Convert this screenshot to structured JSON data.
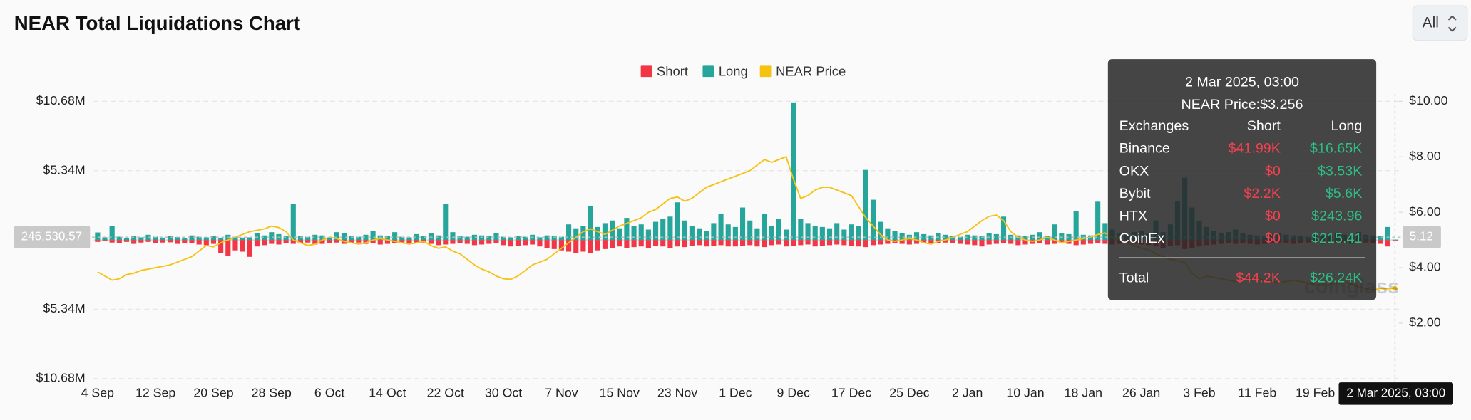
{
  "header": {
    "title": "NEAR Total Liquidations Chart",
    "range_select": "All"
  },
  "chart_data": {
    "type": "bar",
    "legend": "top",
    "grid": true,
    "categories": [
      "4 Sep",
      null,
      null,
      null,
      null,
      null,
      null,
      null,
      "12 Sep",
      null,
      null,
      null,
      null,
      null,
      null,
      null,
      "20 Sep",
      null,
      null,
      null,
      null,
      null,
      null,
      null,
      "28 Sep",
      null,
      null,
      null,
      null,
      null,
      null,
      null,
      "6 Oct",
      null,
      null,
      null,
      null,
      null,
      null,
      null,
      "14 Oct",
      null,
      null,
      null,
      null,
      null,
      null,
      null,
      "22 Oct",
      null,
      null,
      null,
      null,
      null,
      null,
      null,
      "30 Oct",
      null,
      null,
      null,
      null,
      null,
      null,
      null,
      "7 Nov",
      null,
      null,
      null,
      null,
      null,
      null,
      null,
      "15 Nov",
      null,
      null,
      null,
      null,
      null,
      null,
      null,
      "23 Nov",
      null,
      null,
      null,
      null,
      null,
      null,
      null,
      "1 Dec",
      null,
      null,
      null,
      null,
      null,
      null,
      null,
      "9 Dec",
      null,
      null,
      null,
      null,
      null,
      null,
      null,
      "17 Dec",
      null,
      null,
      null,
      null,
      null,
      null,
      null,
      "25 Dec",
      null,
      null,
      null,
      null,
      null,
      null,
      null,
      "2 Jan",
      null,
      null,
      null,
      null,
      null,
      null,
      null,
      "10 Jan",
      null,
      null,
      null,
      null,
      null,
      null,
      null,
      "18 Jan",
      null,
      null,
      null,
      null,
      null,
      null,
      null,
      "26 Jan",
      null,
      null,
      null,
      null,
      null,
      null,
      null,
      "3 Feb",
      null,
      null,
      null,
      null,
      null,
      null,
      null,
      "11 Feb",
      null,
      null,
      null,
      null,
      null,
      null,
      null,
      "19 Feb",
      null,
      null,
      null,
      null,
      null,
      null,
      null,
      null,
      null,
      null,
      null
    ],
    "ylim": [
      -10680000,
      10680000
    ],
    "yticks": [
      {
        "value": 10680000,
        "label": "$10.68M"
      },
      {
        "value": 5340000,
        "label": "$5.34M"
      },
      {
        "value": -5340000,
        "label": "$5.34M"
      },
      {
        "value": -10680000,
        "label": "$10.68M"
      }
    ],
    "y2lim": [
      0,
      10
    ],
    "y2ticks": [
      {
        "value": 10,
        "label": "$10.00"
      },
      {
        "value": 8,
        "label": "$8.00"
      },
      {
        "value": 6,
        "label": "$6.00"
      },
      {
        "value": 4,
        "label": "$4.00"
      },
      {
        "value": 2,
        "label": "$2.00"
      }
    ],
    "series": [
      {
        "name": "Short",
        "color": "#f23645",
        "values": [
          -150000,
          -100000,
          -200000,
          -250000,
          -150000,
          -300000,
          -200000,
          -150000,
          -250000,
          -200000,
          -180000,
          -300000,
          -220000,
          -250000,
          -350000,
          -400000,
          -300000,
          -1000000,
          -1200000,
          -800000,
          -900000,
          -1300000,
          -500000,
          -400000,
          -300000,
          -350000,
          -250000,
          -300000,
          -250000,
          -200000,
          -350000,
          -300000,
          -250000,
          -200000,
          -300000,
          -250000,
          -200000,
          -300000,
          -250000,
          -350000,
          -300000,
          -250000,
          -200000,
          -300000,
          -250000,
          -200000,
          -300000,
          -400000,
          -350000,
          -300000,
          -250000,
          -300000,
          -400000,
          -350000,
          -300000,
          -250000,
          -400000,
          -500000,
          -450000,
          -400000,
          -350000,
          -500000,
          -600000,
          -700000,
          -800000,
          -900000,
          -1000000,
          -900000,
          -1000000,
          -800000,
          -700000,
          -600000,
          -500000,
          -600000,
          -550000,
          -500000,
          -600000,
          -450000,
          -500000,
          -600000,
          -500000,
          -550000,
          -450000,
          -400000,
          -500000,
          -450000,
          -400000,
          -500000,
          -500000,
          -450000,
          -400000,
          -500000,
          -550000,
          -400000,
          -350000,
          -500000,
          -450000,
          -400000,
          -350000,
          -500000,
          -450000,
          -400000,
          -350000,
          -400000,
          -450000,
          -500000,
          -550000,
          -400000,
          -350000,
          -300000,
          -250000,
          -300000,
          -350000,
          -300000,
          -250000,
          -300000,
          -250000,
          -200000,
          -250000,
          -300000,
          -350000,
          -400000,
          -500000,
          -350000,
          -300000,
          -250000,
          -300000,
          -400000,
          -350000,
          -300000,
          -250000,
          -350000,
          -300000,
          -250000,
          -300000,
          -400000,
          -350000,
          -300000,
          -250000,
          -300000,
          -350000,
          -300000,
          -250000,
          -300000,
          -350000,
          -400000,
          -500000,
          -600000,
          -450000,
          -400000,
          -700000,
          -600000,
          -500000,
          -400000,
          -350000,
          -300000,
          -250000,
          -300000,
          -250000,
          -300000,
          -350000,
          -300000,
          -250000,
          -200000,
          -250000,
          -300000,
          -250000,
          -200000,
          -250000,
          -300000,
          -250000,
          -200000,
          -250000,
          -300000,
          -250000,
          -200000,
          -250000,
          -300000,
          -500000,
          -44200
        ]
      },
      {
        "name": "Long",
        "color": "#26a69a",
        "values": [
          580000,
          200000,
          1080000,
          250000,
          150000,
          300000,
          200000,
          400000,
          250000,
          180000,
          300000,
          220000,
          160000,
          350000,
          250000,
          200000,
          300000,
          150000,
          400000,
          250000,
          180000,
          200000,
          500000,
          350000,
          600000,
          450000,
          300000,
          2750000,
          300000,
          250000,
          400000,
          350000,
          200000,
          600000,
          500000,
          300000,
          250000,
          400000,
          700000,
          350000,
          300000,
          600000,
          250000,
          200000,
          450000,
          300000,
          500000,
          350000,
          2800000,
          600000,
          300000,
          250000,
          400000,
          350000,
          300000,
          500000,
          250000,
          200000,
          300000,
          250000,
          400000,
          200000,
          350000,
          300000,
          250000,
          1200000,
          900000,
          1100000,
          2600000,
          1000000,
          1300000,
          1500000,
          900000,
          1700000,
          1100000,
          1200000,
          800000,
          1400000,
          1600000,
          1800000,
          2900000,
          1500000,
          1100000,
          900000,
          700000,
          1300000,
          2000000,
          1200000,
          1000000,
          2500000,
          1500000,
          900000,
          2000000,
          1100000,
          1600000,
          800000,
          10600000,
          1600000,
          1300000,
          1100000,
          1000000,
          900000,
          1300000,
          800000,
          1200000,
          1100000,
          5400000,
          3100000,
          1400000,
          900000,
          700000,
          500000,
          400000,
          600000,
          450000,
          350000,
          500000,
          400000,
          300000,
          250000,
          400000,
          350000,
          300000,
          500000,
          450000,
          1800000,
          400000,
          350000,
          300000,
          400000,
          600000,
          300000,
          1200000,
          500000,
          450000,
          2200000,
          400000,
          350000,
          2950000,
          1300000,
          800000,
          500000,
          400000,
          600000,
          700000,
          500000,
          1500000,
          600000,
          1200000,
          3000000,
          4800000,
          2500000,
          1500000,
          1000000,
          700000,
          500000,
          600000,
          800000,
          500000,
          400000,
          350000,
          300000,
          450000,
          500000,
          400000,
          350000,
          300000,
          250000,
          400000,
          300000,
          350000,
          500000,
          400000,
          300000,
          600000,
          400000,
          350000,
          300000,
          1000000,
          26240
        ]
      },
      {
        "name": "NEAR Price",
        "color": "#f5c211",
        "type": "line",
        "axis": "y2",
        "values": [
          3.85,
          3.7,
          3.55,
          3.6,
          3.75,
          3.8,
          3.9,
          3.95,
          4.0,
          4.05,
          4.1,
          4.2,
          4.3,
          4.4,
          4.6,
          4.8,
          4.75,
          4.9,
          5.0,
          5.1,
          5.2,
          5.3,
          5.35,
          5.4,
          5.5,
          5.45,
          5.3,
          5.0,
          4.9,
          4.8,
          4.85,
          5.0,
          5.1,
          5.05,
          4.95,
          4.9,
          4.85,
          4.9,
          5.0,
          5.05,
          5.0,
          4.95,
          4.9,
          4.85,
          4.9,
          4.95,
          4.8,
          4.7,
          4.75,
          4.6,
          4.5,
          4.3,
          4.1,
          3.95,
          3.85,
          3.7,
          3.6,
          3.58,
          3.7,
          3.9,
          4.1,
          4.2,
          4.3,
          4.5,
          4.7,
          4.9,
          5.1,
          5.3,
          5.4,
          5.3,
          5.2,
          5.35,
          5.5,
          5.6,
          5.7,
          5.8,
          6.0,
          6.1,
          6.3,
          6.5,
          6.55,
          6.4,
          6.5,
          6.7,
          6.9,
          7.0,
          7.1,
          7.2,
          7.3,
          7.4,
          7.5,
          7.7,
          7.9,
          7.8,
          7.9,
          8.0,
          7.2,
          6.5,
          6.6,
          6.8,
          6.9,
          6.9,
          6.8,
          6.7,
          6.6,
          6.2,
          5.8,
          5.5,
          5.2,
          5.0,
          4.95,
          5.0,
          5.05,
          5.0,
          4.9,
          4.85,
          4.95,
          5.0,
          5.1,
          5.2,
          5.3,
          5.5,
          5.7,
          5.85,
          5.9,
          5.7,
          5.3,
          5.1,
          5.0,
          4.95,
          5.0,
          5.1,
          5.0,
          4.9,
          4.95,
          5.0,
          5.05,
          5.1,
          5.2,
          5.25,
          5.1,
          5.0,
          4.9,
          4.8,
          4.7,
          4.65,
          4.5,
          4.4,
          4.3,
          4.25,
          4.2,
          3.8,
          3.6,
          3.7,
          3.65,
          3.6,
          3.55,
          3.5,
          3.55,
          3.6,
          3.6,
          3.55,
          3.5,
          3.45,
          3.5,
          3.55,
          3.5,
          3.45,
          3.4,
          3.35,
          3.4,
          3.45,
          3.5,
          3.4,
          3.3,
          3.25,
          3.2,
          3.25,
          3.24,
          3.256
        ]
      }
    ]
  },
  "crosshair": {
    "x_label": "2 Mar 2025, 03:00",
    "y_label": "246,530.57",
    "y2_label": "5.12"
  },
  "tooltip": {
    "title": "2 Mar 2025, 03:00",
    "price": "NEAR Price:$3.256",
    "columns": [
      "Exchanges",
      "Short",
      "Long"
    ],
    "rows": [
      [
        "Binance",
        "$41.99K",
        "$16.65K"
      ],
      [
        "OKX",
        "$0",
        "$3.53K"
      ],
      [
        "Bybit",
        "$2.2K",
        "$5.6K"
      ],
      [
        "HTX",
        "$0",
        "$243.96"
      ],
      [
        "CoinEx",
        "$0",
        "$215.41"
      ]
    ],
    "total": [
      "Total",
      "$44.2K",
      "$26.24K"
    ]
  },
  "watermark": "coinglass"
}
